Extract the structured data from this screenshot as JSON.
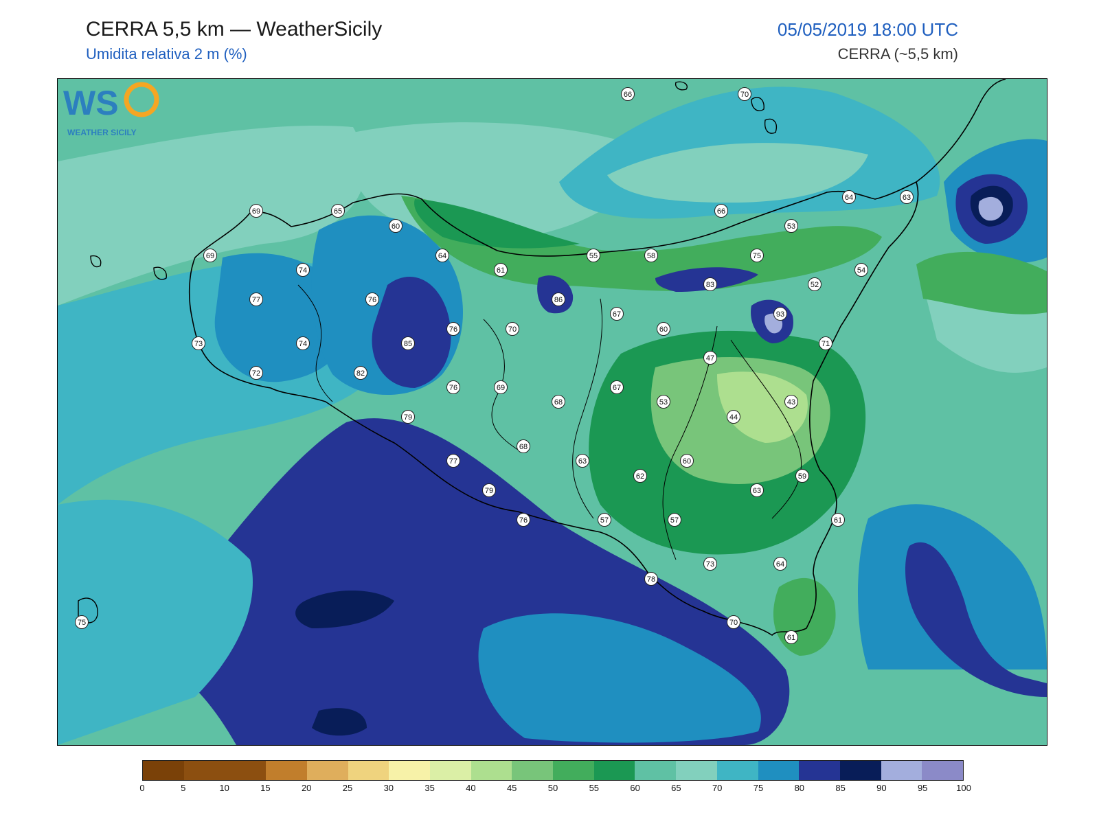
{
  "header": {
    "title": "CERRA 5,5 km — WeatherSicily",
    "subtitle": "Umidita relativa 2 m (%)",
    "datetime": "05/05/2019 18:00 UTC",
    "model": "CERRA (~5,5 km)"
  },
  "logo": {
    "letters": "WS",
    "text": "WEATHER SICILY"
  },
  "stations": [
    {
      "value": "66"
    },
    {
      "value": "70"
    },
    {
      "value": "69"
    },
    {
      "value": "65"
    },
    {
      "value": "60"
    },
    {
      "value": "64"
    },
    {
      "value": "63"
    },
    {
      "value": "66"
    },
    {
      "value": "53"
    },
    {
      "value": "69"
    },
    {
      "value": "74"
    },
    {
      "value": "64"
    },
    {
      "value": "61"
    },
    {
      "value": "55"
    },
    {
      "value": "58"
    },
    {
      "value": "75"
    },
    {
      "value": "54"
    },
    {
      "value": "83"
    },
    {
      "value": "52"
    },
    {
      "value": "77"
    },
    {
      "value": "76"
    },
    {
      "value": "86"
    },
    {
      "value": "93"
    },
    {
      "value": "67"
    },
    {
      "value": "73"
    },
    {
      "value": "74"
    },
    {
      "value": "76"
    },
    {
      "value": "70"
    },
    {
      "value": "60"
    },
    {
      "value": "85"
    },
    {
      "value": "71"
    },
    {
      "value": "47"
    },
    {
      "value": "72"
    },
    {
      "value": "82"
    },
    {
      "value": "76"
    },
    {
      "value": "69"
    },
    {
      "value": "67"
    },
    {
      "value": "68"
    },
    {
      "value": "53"
    },
    {
      "value": "43"
    },
    {
      "value": "79"
    },
    {
      "value": "44"
    },
    {
      "value": "68"
    },
    {
      "value": "77"
    },
    {
      "value": "63"
    },
    {
      "value": "60"
    },
    {
      "value": "62"
    },
    {
      "value": "59"
    },
    {
      "value": "79"
    },
    {
      "value": "63"
    },
    {
      "value": "76"
    },
    {
      "value": "57"
    },
    {
      "value": "57"
    },
    {
      "value": "61"
    },
    {
      "value": "73"
    },
    {
      "value": "64"
    },
    {
      "value": "78"
    },
    {
      "value": "75"
    },
    {
      "value": "70"
    },
    {
      "value": "61"
    }
  ],
  "colorbar": {
    "ticks": [
      "0",
      "5",
      "10",
      "15",
      "20",
      "25",
      "30",
      "35",
      "40",
      "45",
      "50",
      "55",
      "60",
      "65",
      "70",
      "75",
      "80",
      "85",
      "90",
      "95",
      "100"
    ],
    "colors": [
      "#7a4108",
      "#8c4f10",
      "#8c4f10",
      "#c17e2c",
      "#dfae5c",
      "#efd37e",
      "#f7f2a8",
      "#dbefa6",
      "#addf8f",
      "#78c57a",
      "#42ad5c",
      "#1b9853",
      "#5fc1a4",
      "#82d0bd",
      "#3fb5c4",
      "#1f8fc0",
      "#253494",
      "#081d58",
      "#a3aedd",
      "#8b8ac8"
    ]
  }
}
